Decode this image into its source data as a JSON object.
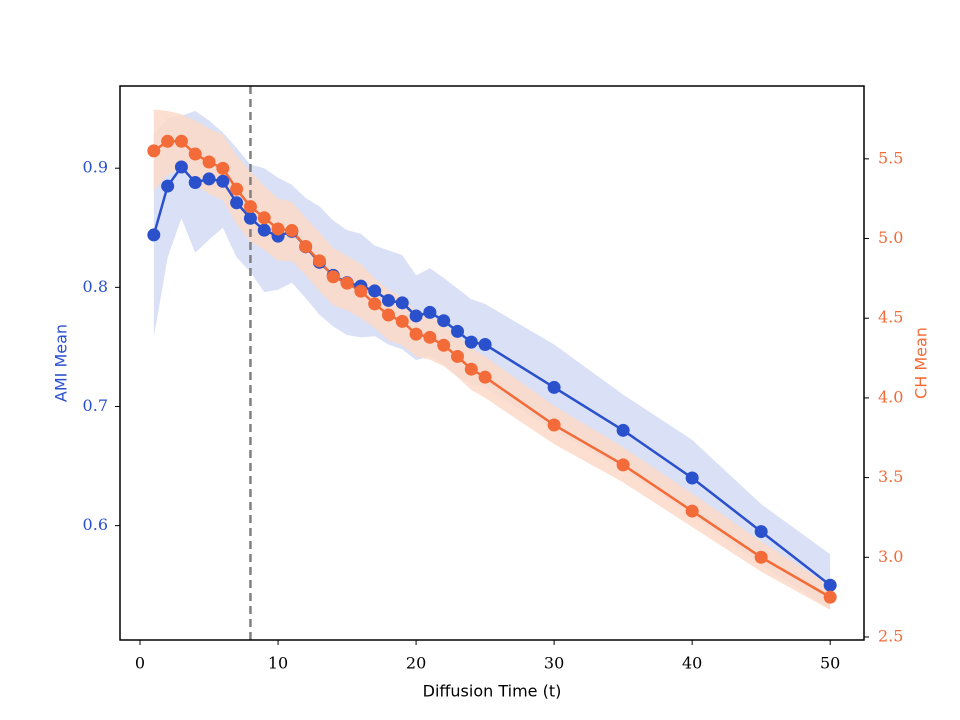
{
  "chart_data": {
    "type": "line",
    "xlabel": "Diffusion Time (t)",
    "ylabel": "AMI Mean",
    "y2label": "CH Mean",
    "x": [
      1,
      2,
      3,
      4,
      5,
      6,
      7,
      8,
      9,
      10,
      11,
      12,
      13,
      14,
      15,
      16,
      17,
      18,
      19,
      20,
      21,
      22,
      23,
      24,
      25,
      30,
      35,
      40,
      45,
      50
    ],
    "series": [
      {
        "color": "#2a50cc",
        "band_color": "#d3dbf3",
        "values": [
          0.844,
          0.885,
          0.901,
          0.888,
          0.891,
          0.889,
          0.871,
          0.858,
          0.848,
          0.843,
          0.847,
          0.834,
          0.821,
          0.81,
          0.804,
          0.801,
          0.797,
          0.789,
          0.787,
          0.776,
          0.779,
          0.772,
          0.763,
          0.754,
          0.752,
          0.716,
          0.68,
          0.64,
          0.595,
          0.55
        ],
        "upper": [
          0.929,
          0.942,
          0.944,
          0.948,
          0.94,
          0.93,
          0.917,
          0.903,
          0.9,
          0.892,
          0.886,
          0.875,
          0.868,
          0.856,
          0.848,
          0.845,
          0.835,
          0.831,
          0.827,
          0.81,
          0.816,
          0.808,
          0.799,
          0.79,
          0.786,
          0.752,
          0.71,
          0.672,
          0.618,
          0.576
        ],
        "lower": [
          0.758,
          0.825,
          0.858,
          0.829,
          0.84,
          0.85,
          0.825,
          0.813,
          0.796,
          0.798,
          0.804,
          0.791,
          0.777,
          0.767,
          0.76,
          0.758,
          0.759,
          0.752,
          0.748,
          0.739,
          0.742,
          0.735,
          0.725,
          0.719,
          0.716,
          0.68,
          0.647,
          0.609,
          0.567,
          0.53
        ]
      },
      {
        "color": "#f26b38",
        "band_color": "#fcd9c8",
        "axis": "y2",
        "values": [
          5.55,
          5.61,
          5.61,
          5.53,
          5.48,
          5.44,
          5.31,
          5.2,
          5.13,
          5.06,
          5.05,
          4.95,
          4.86,
          4.76,
          4.72,
          4.67,
          4.59,
          4.52,
          4.48,
          4.4,
          4.38,
          4.33,
          4.26,
          4.18,
          4.13,
          3.83,
          3.58,
          3.29,
          3.0,
          2.75
        ],
        "upper": [
          5.81,
          5.8,
          5.78,
          5.74,
          5.69,
          5.65,
          5.52,
          5.42,
          5.33,
          5.25,
          5.23,
          5.13,
          5.04,
          4.94,
          4.89,
          4.84,
          4.75,
          4.68,
          4.63,
          4.54,
          4.52,
          4.46,
          4.39,
          4.31,
          4.26,
          3.95,
          3.69,
          3.4,
          3.1,
          2.82
        ],
        "lower": [
          5.3,
          5.4,
          5.44,
          5.34,
          5.28,
          5.24,
          5.09,
          4.98,
          4.93,
          4.86,
          4.86,
          4.77,
          4.67,
          4.58,
          4.55,
          4.5,
          4.44,
          4.36,
          4.33,
          4.26,
          4.24,
          4.2,
          4.13,
          4.05,
          4.0,
          3.71,
          3.47,
          3.19,
          2.91,
          2.67
        ]
      }
    ],
    "xlim": [
      -1.45,
      52.45
    ],
    "xticks": [
      0,
      10,
      20,
      30,
      40,
      50
    ],
    "ylim": [
      0.504,
      0.969
    ],
    "yticks": [
      0.6,
      0.7,
      0.8,
      0.9
    ],
    "y2lim": [
      2.481,
      5.957
    ],
    "y2ticks": [
      2.5,
      {
        "value": 3,
        "label": "3.0"
      },
      3.5,
      {
        "value": 4,
        "label": "4.0"
      },
      4.5,
      {
        "value": 5,
        "label": "5.0"
      },
      5.5
    ],
    "vline_x": 8,
    "vline_color": "#808080"
  }
}
